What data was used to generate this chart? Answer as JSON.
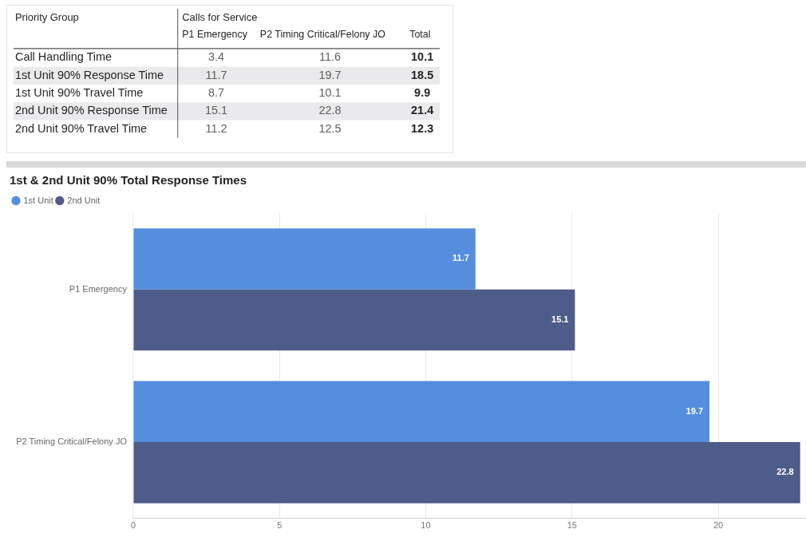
{
  "chart_data": [
    {
      "type": "heatmap",
      "xlabel": "Calls for Service",
      "ylabel": "Priority Group",
      "categories": [
        "P1 Emergency",
        "P2 Timing Critical/Felony JO",
        "Total"
      ],
      "y_categories": [
        "Call Handling Time",
        "1st Unit 90% Response Time",
        "1st Unit 90% Travel Time",
        "2nd Unit 90% Response Time",
        "2nd Unit 90% Travel Time"
      ],
      "cells": [
        [
          3.4,
          11.6,
          10.1
        ],
        [
          11.7,
          19.7,
          18.5
        ],
        [
          8.7,
          10.1,
          9.9
        ],
        [
          15.1,
          22.8,
          21.4
        ],
        [
          11.2,
          12.5,
          12.3
        ]
      ],
      "data_labels": true
    },
    {
      "type": "bar",
      "orientation": "horizontal",
      "title": "1st & 2nd Unit 90% Total Response Times",
      "categories": [
        "P1 Emergency",
        "P2 Timing Critical/Felony JO"
      ],
      "series": [
        {
          "name": "1st Unit",
          "color": "#558ede",
          "values": [
            11.7,
            19.7
          ]
        },
        {
          "name": "2nd Unit",
          "color": "#4e5c8a",
          "values": [
            15.1,
            22.8
          ]
        }
      ],
      "xlim": [
        0,
        23
      ],
      "xticks": [
        0,
        5,
        10,
        15,
        20
      ],
      "grid": "x",
      "legend": "top left",
      "data_labels": true
    }
  ]
}
